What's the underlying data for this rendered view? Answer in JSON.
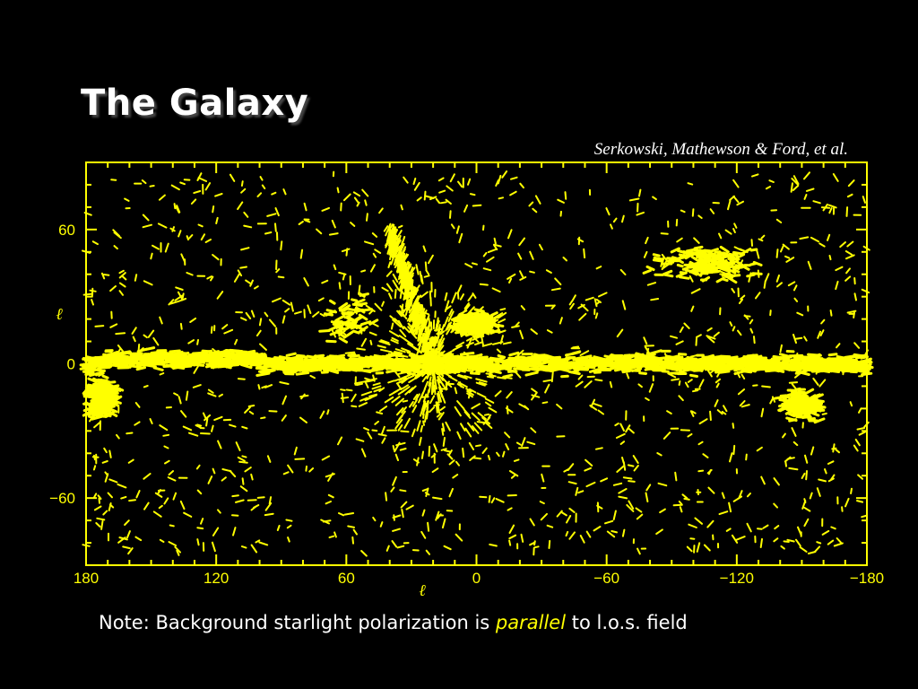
{
  "slide": {
    "title": "The Galaxy",
    "credit": "Serkowski, Mathewson & Ford, et al.",
    "note_prefix": "Note: Background starlight polarization is ",
    "note_emph": "parallel",
    "note_suffix": " to l.o.s. field"
  },
  "colors": {
    "background": "#000000",
    "plot": "#ffff00",
    "text": "#ffffff"
  },
  "chart_data": {
    "type": "scatter",
    "title": "",
    "xlabel": "ℓ",
    "ylabel": "ℓ",
    "xlim": [
      180,
      -180
    ],
    "ylim": [
      -90,
      90
    ],
    "x_ticks": [
      180,
      120,
      60,
      0,
      -60,
      -120,
      -180
    ],
    "x_tick_labels": [
      "180",
      "120",
      "60",
      "0",
      "−60",
      "−120",
      "−180"
    ],
    "y_ticks": [
      60,
      0,
      -60
    ],
    "y_tick_labels": [
      "60",
      "0",
      "−60"
    ],
    "grid": false,
    "marker": "short line segments (polarization vectors)",
    "concentrations": [
      {
        "l": 0,
        "b": 0,
        "note": "galactic plane band"
      },
      {
        "l": 30,
        "b": 30,
        "note": "high-latitude streak"
      },
      {
        "l": 0,
        "b": 18,
        "note": "cluster"
      },
      {
        "l": 175,
        "b": -15,
        "note": "cluster"
      },
      {
        "l": -150,
        "b": -18,
        "note": "cluster"
      }
    ]
  }
}
